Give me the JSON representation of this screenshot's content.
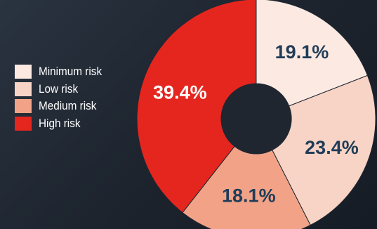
{
  "chart_data": {
    "type": "pie",
    "donut": true,
    "categories": [
      "Minimum risk",
      "Low risk",
      "Medium risk",
      "High risk"
    ],
    "values": [
      19.1,
      23.4,
      18.1,
      39.4
    ],
    "value_labels": [
      "19.1%",
      "23.4%",
      "18.1%",
      "39.4%"
    ],
    "colors": [
      "#fce9e2",
      "#f7d4c5",
      "#f2a387",
      "#e4261f"
    ],
    "label_colors": [
      "#1f3c58",
      "#1f3c58",
      "#1f3c58",
      "#ffffff"
    ],
    "legend_placement": "left",
    "title": "",
    "background": "#1f2630"
  }
}
